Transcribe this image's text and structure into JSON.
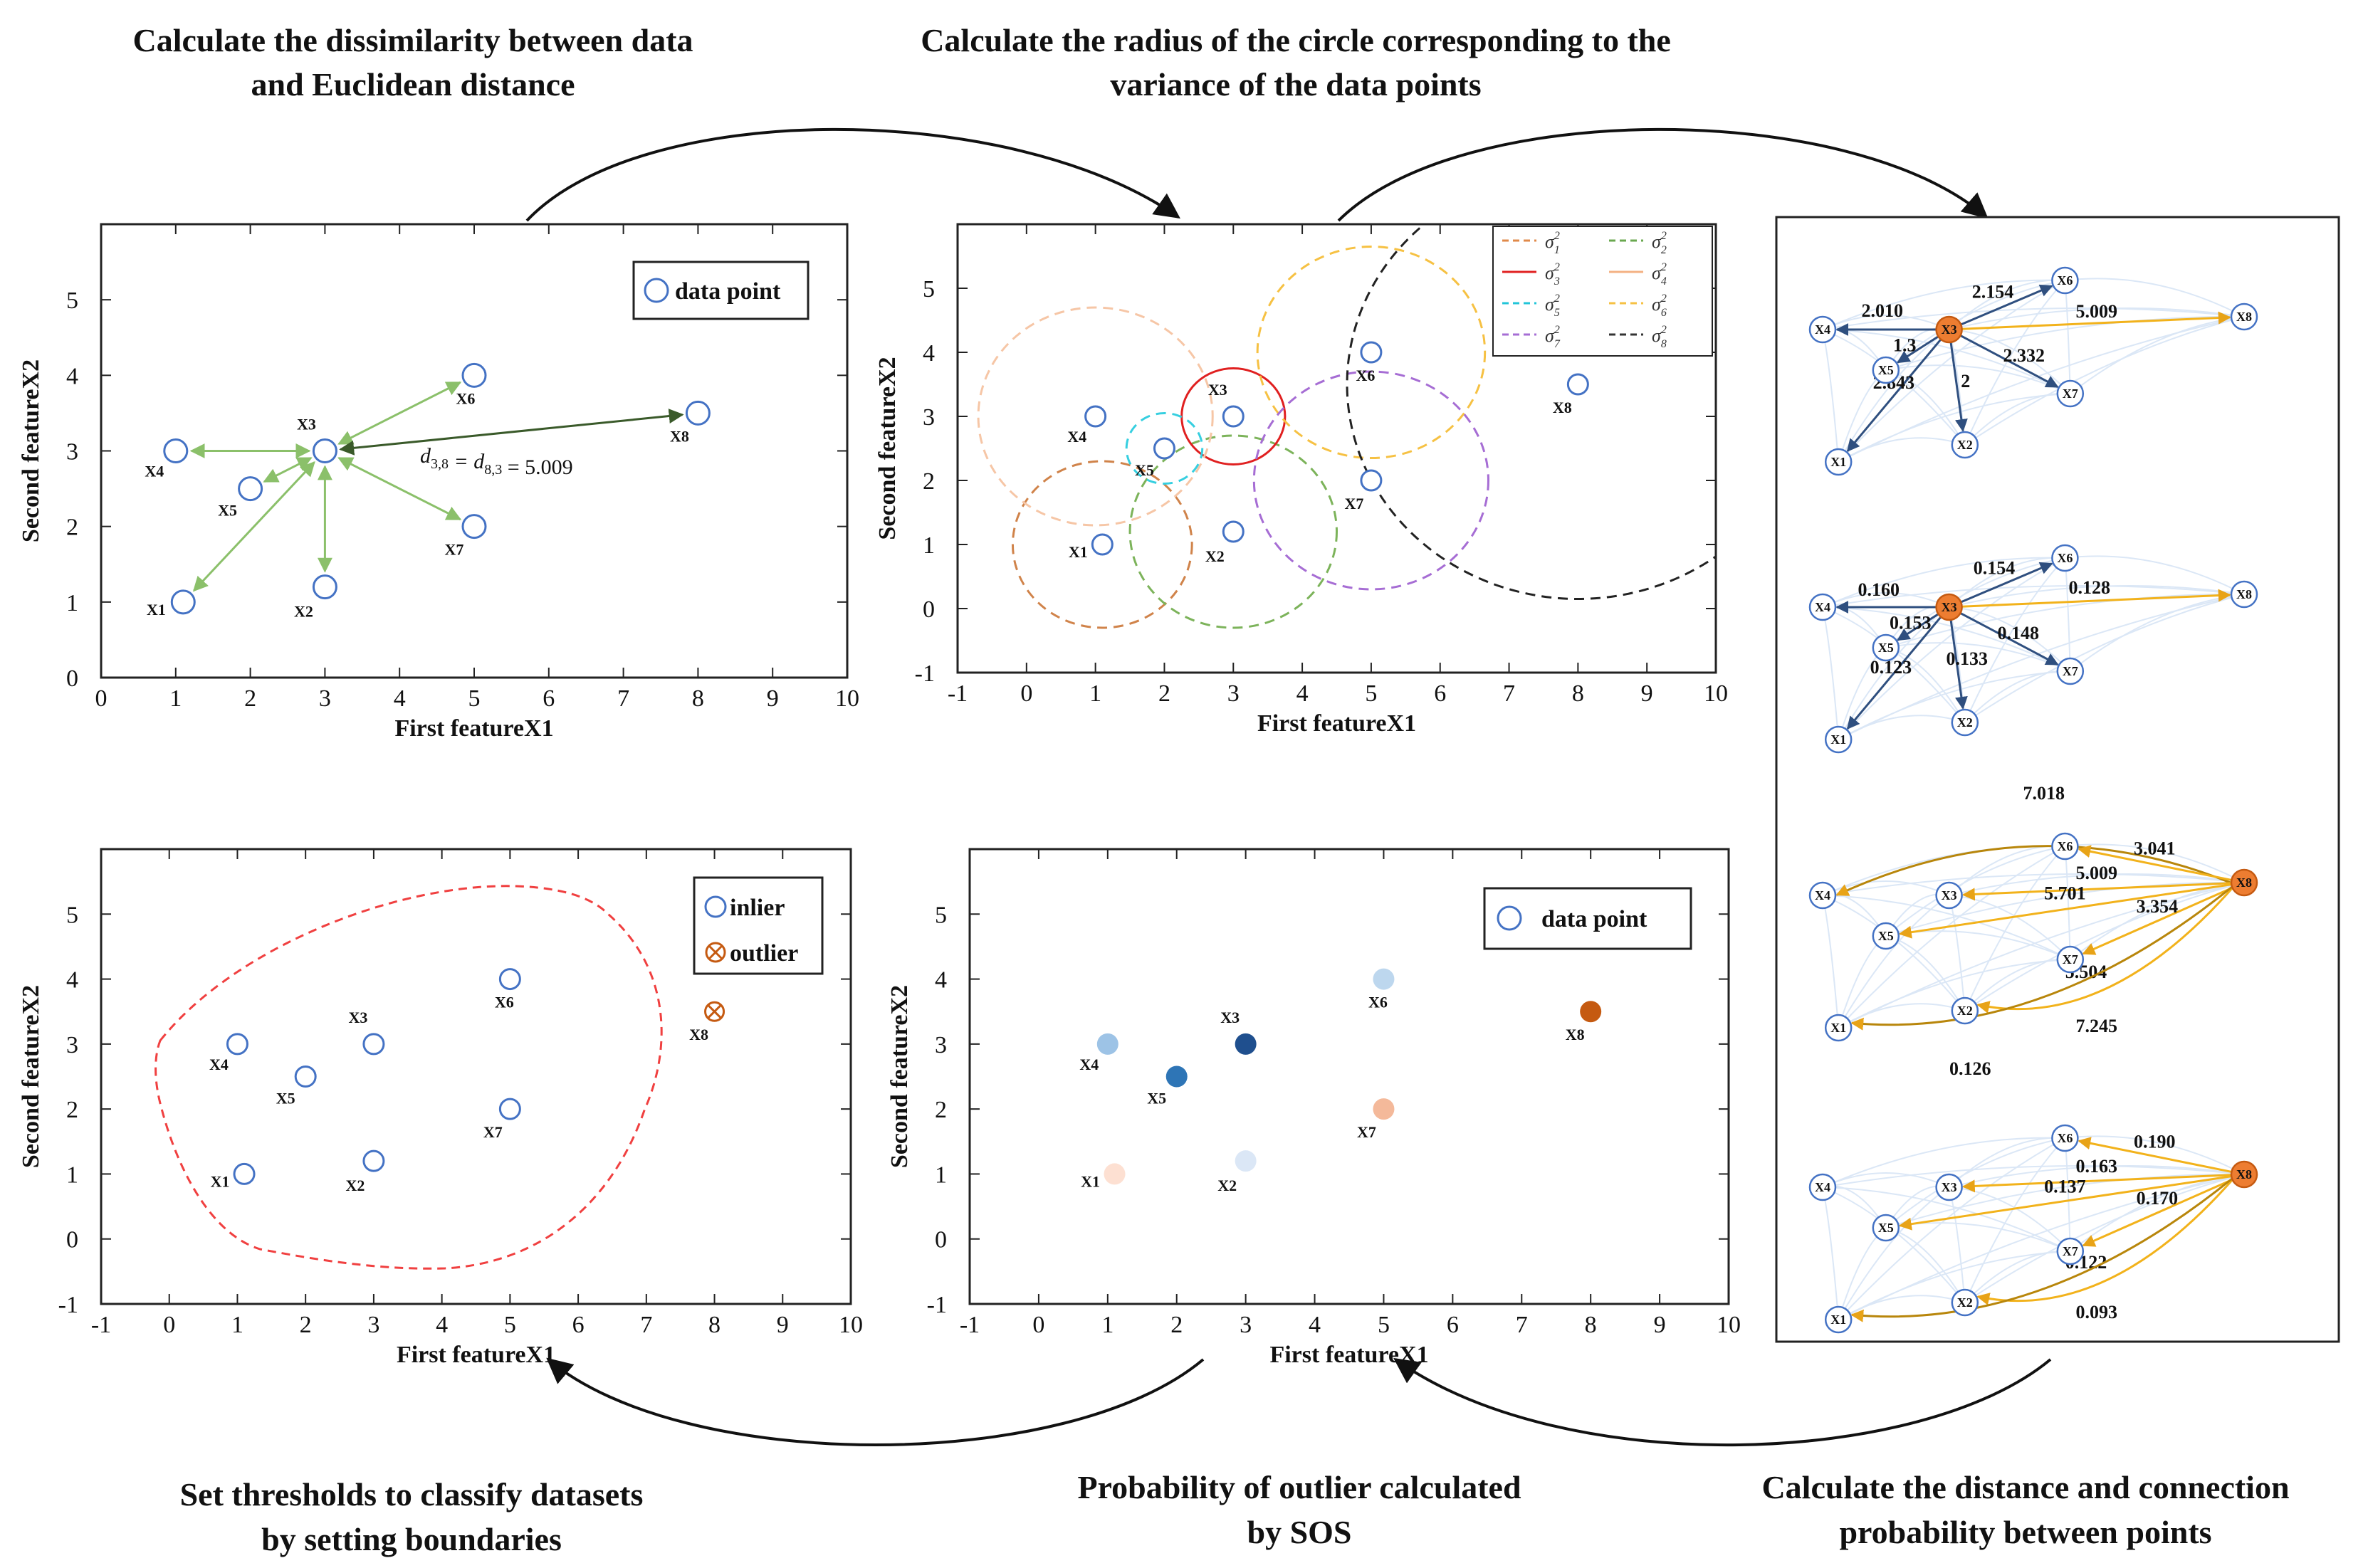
{
  "titles": {
    "top_left": [
      "Calculate the dissimilarity between data",
      "and Euclidean distance"
    ],
    "top_mid": [
      "Calculate the radius of the circle corresponding to the",
      "variance of the data points"
    ],
    "bottom_left": [
      "Set thresholds to classify datasets",
      "by setting boundaries"
    ],
    "bottom_mid": [
      "Probability of outlier calculated",
      "by SOS"
    ],
    "bottom_right": [
      "Calculate the distance and connection",
      "probability between points"
    ]
  },
  "axes": {
    "xlabel": "First featureX1",
    "ylabel": "Second featureX2"
  },
  "points": [
    {
      "id": "X1",
      "x": 1.1,
      "y": 1.0
    },
    {
      "id": "X2",
      "x": 3.0,
      "y": 1.2
    },
    {
      "id": "X3",
      "x": 3.0,
      "y": 3.0
    },
    {
      "id": "X4",
      "x": 1.0,
      "y": 3.0
    },
    {
      "id": "X5",
      "x": 2.0,
      "y": 2.5
    },
    {
      "id": "X6",
      "x": 5.0,
      "y": 4.0
    },
    {
      "id": "X7",
      "x": 5.0,
      "y": 2.0
    },
    {
      "id": "X8",
      "x": 8.0,
      "y": 3.5
    }
  ],
  "chart_data": [
    {
      "type": "scatter",
      "name": "dissimilarity",
      "xlim": [
        0,
        10
      ],
      "ylim": [
        0,
        6
      ],
      "xticks": [
        "0",
        "1",
        "2",
        "3",
        "4",
        "5",
        "6",
        "7",
        "8",
        "9",
        "10"
      ],
      "yticks": [
        "0",
        "1",
        "2",
        "3",
        "4",
        "5"
      ],
      "legend": "data point",
      "annotation": {
        "prefix": "d",
        "sub1": "3,8",
        "mid": " = d",
        "sub2": "8,3",
        "value": " = 5.009"
      }
    },
    {
      "type": "scatter",
      "name": "variance circles",
      "xlim": [
        -1,
        10
      ],
      "ylim": [
        -1,
        6
      ],
      "xticks": [
        "-1",
        "0",
        "1",
        "2",
        "3",
        "4",
        "5",
        "6",
        "7",
        "8",
        "9",
        "10"
      ],
      "yticks": [
        "-1",
        "0",
        "1",
        "2",
        "3",
        "4",
        "5"
      ],
      "legend": [
        {
          "label": "σ1",
          "color": "#e08a4a",
          "dash": true
        },
        {
          "label": "σ2",
          "color": "#6aa84f",
          "dash": true
        },
        {
          "label": "σ3",
          "color": "#e02020",
          "dash": false
        },
        {
          "label": "σ4",
          "color": "#f4b183",
          "dash": false
        },
        {
          "label": "σ5",
          "color": "#22c5d8",
          "dash": true
        },
        {
          "label": "σ6",
          "color": "#f6c143",
          "dash": true
        },
        {
          "label": "σ7",
          "color": "#a66dd4",
          "dash": true
        },
        {
          "label": "σ8",
          "color": "#333333",
          "dash": true
        }
      ],
      "sigma_power": "2",
      "circles": [
        {
          "point": "X1",
          "r": 1.3,
          "color": "#d0834a"
        },
        {
          "point": "X2",
          "r": 1.5,
          "color": "#7cb35a"
        },
        {
          "point": "X3",
          "r": 0.75,
          "color": "#e02020"
        },
        {
          "point": "X4",
          "r": 1.7,
          "color": "#f6c6a6"
        },
        {
          "point": "X5",
          "r": 0.55,
          "color": "#36cfe0"
        },
        {
          "point": "X6",
          "r": 1.65,
          "color": "#f6c143"
        },
        {
          "point": "X7",
          "r": 1.7,
          "color": "#a66dd4"
        },
        {
          "point": "X8",
          "r": 3.35,
          "color": "#222222"
        }
      ]
    },
    {
      "type": "scatter",
      "name": "threshold",
      "xlim": [
        -1,
        10
      ],
      "ylim": [
        -1,
        6
      ],
      "xticks": [
        "-1",
        "0",
        "1",
        "2",
        "3",
        "4",
        "5",
        "6",
        "7",
        "8",
        "9",
        "10"
      ],
      "yticks": [
        "-1",
        "0",
        "1",
        "2",
        "3",
        "4",
        "5"
      ],
      "legend": [
        "inlier",
        "outlier"
      ]
    },
    {
      "type": "scatter",
      "name": "sos probability",
      "xlim": [
        -1,
        10
      ],
      "ylim": [
        -1,
        6
      ],
      "xticks": [
        "-1",
        "0",
        "1",
        "2",
        "3",
        "4",
        "5",
        "6",
        "7",
        "8",
        "9",
        "10"
      ],
      "yticks": [
        "-1",
        "0",
        "1",
        "2",
        "3",
        "4",
        "5"
      ],
      "legend": "data point",
      "colors": {
        "X1": "#fde0d2",
        "X2": "#dbe7f6",
        "X3": "#1f4f8e",
        "X4": "#9dc3e6",
        "X5": "#2e75b6",
        "X6": "#bdd7ee",
        "X7": "#f4b99a",
        "X8": "#c55a11"
      }
    }
  ],
  "graphs": [
    {
      "center": "X3",
      "edges": [
        {
          "to": "X4",
          "label": "2.010"
        },
        {
          "to": "X5",
          "label": "1.3"
        },
        {
          "to": "X6",
          "label": "2.154"
        },
        {
          "to": "X8",
          "label": "5.009"
        },
        {
          "to": "X7",
          "label": "2.332"
        },
        {
          "to": "X2",
          "label": "2"
        },
        {
          "to": "X1",
          "label": "2.843"
        }
      ]
    },
    {
      "center": "X3",
      "edges": [
        {
          "to": "X4",
          "label": "0.160"
        },
        {
          "to": "X5",
          "label": "0.153"
        },
        {
          "to": "X6",
          "label": "0.154"
        },
        {
          "to": "X8",
          "label": "0.128"
        },
        {
          "to": "X7",
          "label": "0.148"
        },
        {
          "to": "X2",
          "label": "0.133"
        },
        {
          "to": "X1",
          "label": "0.123"
        }
      ]
    },
    {
      "center": "X8",
      "edges": [
        {
          "to": "X4",
          "label": "7.018"
        },
        {
          "to": "X6",
          "label": "3.041"
        },
        {
          "to": "X3",
          "label": "5.009"
        },
        {
          "to": "X5",
          "label": "5.701"
        },
        {
          "to": "X7",
          "label": "3.354"
        },
        {
          "to": "X2",
          "label": "5.504"
        },
        {
          "to": "X1",
          "label": "7.245"
        }
      ],
      "note": "0.126"
    },
    {
      "center": "X8",
      "edges": [
        {
          "to": "X6",
          "label": "0.190"
        },
        {
          "to": "X3",
          "label": "0.163"
        },
        {
          "to": "X5",
          "label": "0.137"
        },
        {
          "to": "X7",
          "label": "0.170"
        },
        {
          "to": "X2",
          "label": "0.122"
        },
        {
          "to": "X1",
          "label": "0.093"
        }
      ]
    }
  ]
}
